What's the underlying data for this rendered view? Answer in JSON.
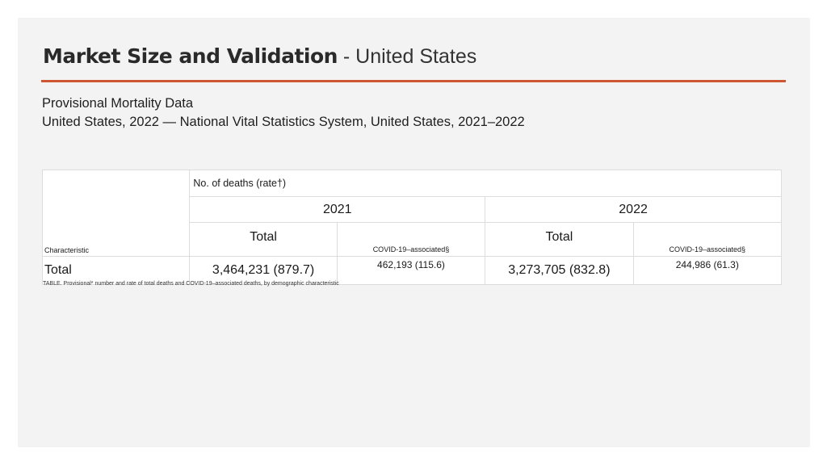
{
  "slide": {
    "title_main": "Market Size and Validation",
    "title_sep": " - ",
    "title_sub": "United States",
    "subtitle_line1": "Provisional Mortality Data",
    "subtitle_line2": "United States, 2022 — National Vital Statistics System, United States, 2021–2022",
    "accent_color": "#cf5632"
  },
  "table": {
    "group_header": "No. of deaths (rate†)",
    "characteristic_label": "Characteristic",
    "years": [
      "2021",
      "2022"
    ],
    "subheaders": {
      "total": "Total",
      "covid": "COVID-19–associated§"
    },
    "rows": [
      {
        "label": "Total",
        "total_2021": "3,464,231 (879.7)",
        "covid_2021": "462,193 (115.6)",
        "total_2022": "3,273,705 (832.8)",
        "covid_2022": "244,986 (61.3)"
      }
    ]
  },
  "caption": "TABLE. Provisional* number and rate of total deaths and COVID-19–associated deaths, by demographic characteristic"
}
